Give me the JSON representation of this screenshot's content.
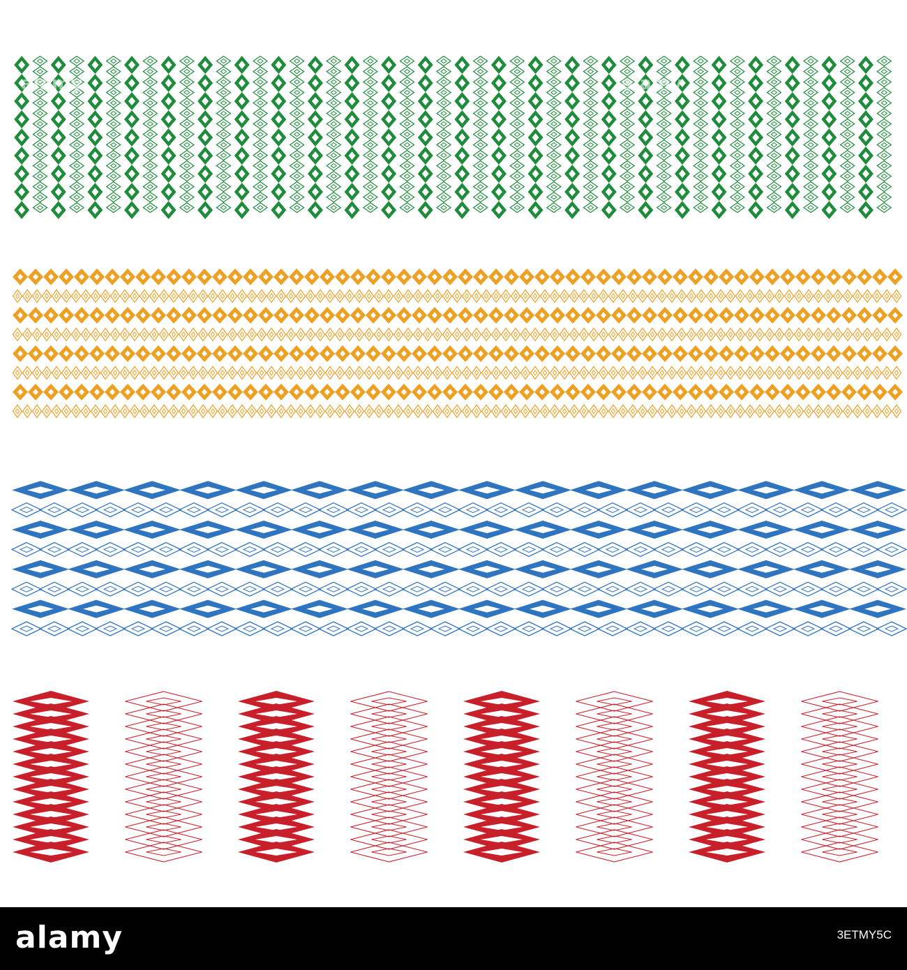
{
  "colors": {
    "green": "#1e8c3a",
    "orange": "#eea023",
    "blue": "#2f74bf",
    "red": "#c8202b",
    "footer_bg": "#000000"
  },
  "bands": [
    {
      "name": "green-vertical-band",
      "color": "green",
      "orientation": "vertical"
    },
    {
      "name": "orange-horizontal-band",
      "color": "orange",
      "orientation": "horizontal"
    },
    {
      "name": "blue-horizontal-band",
      "color": "blue",
      "orientation": "horizontal"
    },
    {
      "name": "red-panel-band",
      "color": "red",
      "orientation": "vertical-panels"
    }
  ],
  "footer": {
    "logo": "alamy",
    "image_id": "3ETMY5C"
  },
  "watermark": "alamy"
}
